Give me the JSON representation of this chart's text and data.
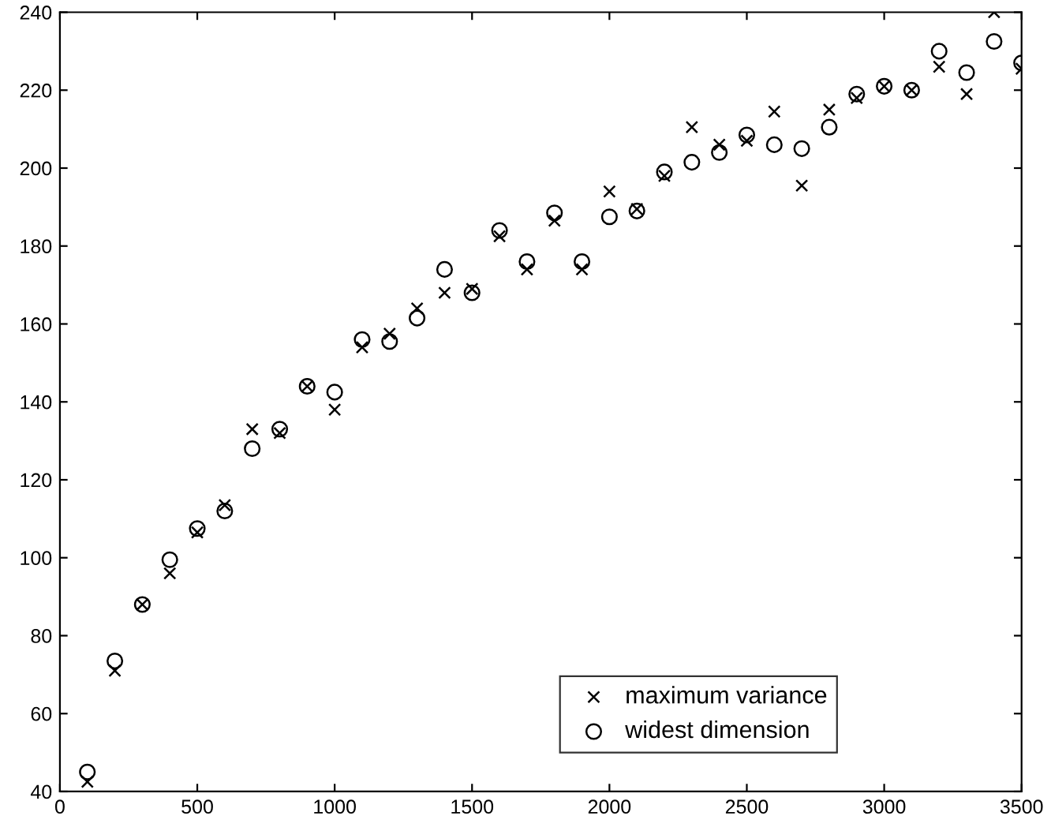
{
  "chart_data": {
    "type": "scatter",
    "x": [
      100,
      200,
      300,
      400,
      500,
      600,
      700,
      800,
      900,
      1000,
      1100,
      1200,
      1300,
      1400,
      1500,
      1600,
      1700,
      1800,
      1900,
      2000,
      2100,
      2200,
      2300,
      2400,
      2500,
      2600,
      2700,
      2800,
      2900,
      3000,
      3100,
      3200,
      3300,
      3400,
      3500
    ],
    "series": [
      {
        "name": "maximum variance",
        "color": "#000000",
        "marker": "cross",
        "values": [
          42.5,
          71,
          88,
          96,
          106.5,
          113.5,
          133,
          132,
          144,
          138,
          154,
          157.5,
          164,
          168,
          169,
          182.5,
          174,
          186.5,
          174,
          194,
          189.5,
          198,
          210.5,
          206,
          207,
          214.5,
          195.5,
          215,
          218,
          221,
          220,
          226,
          219,
          240,
          225.5
        ]
      },
      {
        "name": "widest dimension",
        "color": "#000000",
        "marker": "circle",
        "values": [
          45,
          73.5,
          88,
          99.5,
          107.5,
          112,
          128,
          133,
          144,
          142.5,
          156,
          155.5,
          161.5,
          174,
          168,
          184,
          176,
          188.5,
          176,
          187.5,
          189,
          199,
          201.5,
          204,
          208.5,
          206,
          205,
          210.5,
          219,
          221,
          220,
          230,
          224.5,
          232.5,
          227
        ]
      }
    ],
    "xlim": [
      0,
      3500
    ],
    "ylim": [
      40,
      240
    ],
    "xticks": [
      0,
      500,
      1000,
      1500,
      2000,
      2500,
      3000,
      3500
    ],
    "yticks": [
      40,
      60,
      80,
      100,
      120,
      140,
      160,
      180,
      200,
      220,
      240
    ],
    "grid": false,
    "legend": "bottom right"
  }
}
